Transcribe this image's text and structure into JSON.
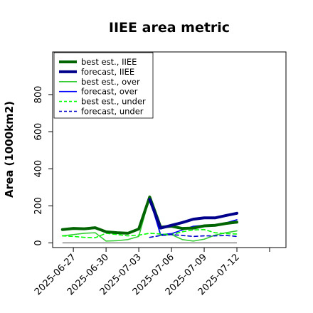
{
  "chart_data": {
    "type": "line",
    "title": "IIEE area metric",
    "xlabel": "",
    "ylabel": "Area (1000km2)",
    "ylim": [
      -25,
      1030
    ],
    "xlim": [
      -0.9,
      20.5
    ],
    "y_ticks": [
      0,
      200,
      400,
      600,
      800
    ],
    "x_tick_positions": [
      1,
      4,
      7,
      10,
      13,
      16,
      19
    ],
    "x_tick_labels": [
      "2025-06-27",
      "2025-06-30",
      "2025-07-03",
      "2025-07-06",
      "2025-07-09",
      "2025-07-12"
    ],
    "x_tick_label_indices": [
      0,
      1,
      2,
      3,
      4,
      5
    ],
    "x_tick_label_positions": [
      1,
      4,
      7,
      10,
      13,
      16
    ],
    "highlight_tick_label": "2025-07-03",
    "highlight_color": "#228b22",
    "x": [
      0,
      1,
      2,
      3,
      4,
      5,
      6,
      7,
      8,
      9,
      10,
      11,
      12,
      13,
      14,
      15,
      16
    ],
    "legend_position": "top-left",
    "grid": false,
    "series": [
      {
        "name": "best est., IIEE",
        "color": "#006400",
        "width": 4,
        "dash": "solid",
        "values": [
          72,
          78,
          76,
          82,
          60,
          55,
          52,
          75,
          248,
          85,
          90,
          78,
          80,
          92,
          95,
          105,
          112
        ]
      },
      {
        "name": "forecast, IIEE",
        "color": "#00008b",
        "width": 4,
        "dash": "solid",
        "values": [
          null,
          null,
          null,
          null,
          null,
          null,
          null,
          null,
          235,
          80,
          95,
          110,
          128,
          135,
          135,
          148,
          160
        ]
      },
      {
        "name": "best est., over",
        "color": "#32cd32",
        "width": 1.6,
        "dash": "solid",
        "values": [
          38,
          45,
          52,
          55,
          10,
          12,
          18,
          35,
          248,
          40,
          45,
          18,
          10,
          20,
          42,
          55,
          65
        ]
      },
      {
        "name": "forecast, over",
        "color": "#0000ff",
        "width": 1.6,
        "dash": "solid",
        "values": [
          null,
          null,
          null,
          null,
          null,
          null,
          null,
          null,
          235,
          45,
          50,
          70,
          90,
          95,
          95,
          108,
          125
        ]
      },
      {
        "name": "best est., under",
        "color": "#00ff00",
        "width": 1.6,
        "dash": "dashed",
        "values": [
          38,
          35,
          30,
          28,
          52,
          45,
          38,
          42,
          52,
          48,
          45,
          60,
          70,
          72,
          55,
          50,
          48
        ]
      },
      {
        "name": "forecast, under",
        "color": "#0000cd",
        "width": 1.6,
        "dash": "dashed",
        "values": [
          null,
          null,
          null,
          null,
          null,
          null,
          null,
          null,
          30,
          40,
          45,
          40,
          35,
          38,
          38,
          40,
          35
        ]
      }
    ]
  }
}
